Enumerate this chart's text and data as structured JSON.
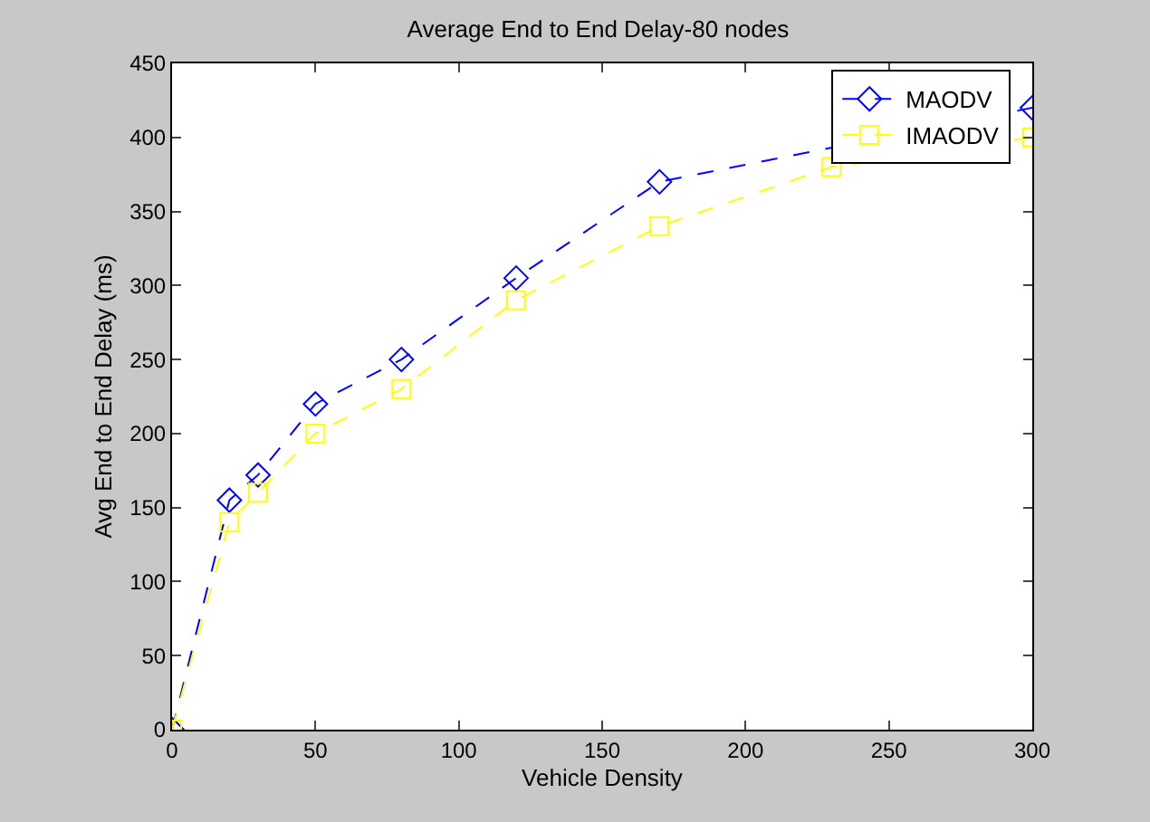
{
  "chart_data": {
    "type": "line",
    "title": "Average End to End Delay-80 nodes",
    "xlabel": "Vehicle Density",
    "ylabel": "Avg End to End Delay (ms)",
    "x": [
      0,
      20,
      30,
      50,
      80,
      120,
      170,
      230,
      300
    ],
    "series": [
      {
        "name": "MAODV",
        "color": "#0000ff",
        "marker": "diamond",
        "values": [
          0,
          155,
          172,
          220,
          250,
          305,
          370,
          null,
          420
        ]
      },
      {
        "name": "IMAODV",
        "color": "#ffff00",
        "marker": "square",
        "values": [
          0,
          140,
          160,
          200,
          230,
          290,
          340,
          380,
          400
        ]
      }
    ],
    "xlim": [
      0,
      300
    ],
    "xticks": [
      0,
      50,
      100,
      150,
      200,
      250,
      300
    ],
    "ylim": [
      0,
      450
    ],
    "yticks": [
      0,
      50,
      100,
      150,
      200,
      250,
      300,
      350,
      400,
      450
    ],
    "line_style": "dashed",
    "legend": "top right"
  }
}
